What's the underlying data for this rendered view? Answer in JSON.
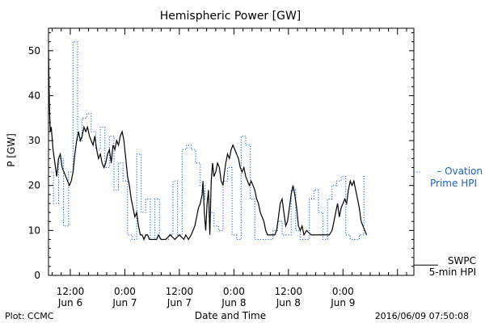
{
  "chart_data": {
    "type": "line",
    "title": "Hemispheric Power [GW]",
    "ylabel": "P [GW]",
    "xlabel": "Date and Time",
    "ylim": [
      0,
      55
    ],
    "yticks": [
      0,
      10,
      20,
      30,
      40,
      50
    ],
    "x_unit": "hours since 2016-06-06 00:00 UT",
    "xlim": [
      7.2,
      87.6
    ],
    "xticks": [
      {
        "x": 12,
        "time": "12:00",
        "date": "Jun 6"
      },
      {
        "x": 24,
        "time": "0:00",
        "date": "Jun 7"
      },
      {
        "x": 36,
        "time": "12:00",
        "date": "Jun 7"
      },
      {
        "x": 48,
        "time": "0:00",
        "date": "Jun 8"
      },
      {
        "x": 60,
        "time": "12:00",
        "date": "Jun 8"
      },
      {
        "x": 72,
        "time": "0:00",
        "date": "Jun 9"
      }
    ],
    "grid": false,
    "series": [
      {
        "name": "SWPC 5-min HPI",
        "legend_line1": "SWPC",
        "legend_line2": "5-min HPI",
        "color": "#000000",
        "style": "solid",
        "points": [
          [
            7.2,
            50
          ],
          [
            7.4,
            38
          ],
          [
            7.6,
            32
          ],
          [
            7.8,
            33
          ],
          [
            8.2,
            28
          ],
          [
            8.6,
            25
          ],
          [
            9,
            22
          ],
          [
            9.4,
            26
          ],
          [
            9.8,
            27
          ],
          [
            10.2,
            24
          ],
          [
            10.6,
            23
          ],
          [
            11,
            22
          ],
          [
            11.4,
            21
          ],
          [
            11.8,
            20
          ],
          [
            12.2,
            21
          ],
          [
            12.6,
            23
          ],
          [
            13,
            27
          ],
          [
            13.4,
            30
          ],
          [
            13.8,
            32
          ],
          [
            14.2,
            30
          ],
          [
            14.6,
            31
          ],
          [
            15,
            33
          ],
          [
            15.4,
            32
          ],
          [
            15.8,
            33
          ],
          [
            16.2,
            31
          ],
          [
            16.6,
            30
          ],
          [
            17,
            29
          ],
          [
            17.4,
            31
          ],
          [
            17.8,
            28
          ],
          [
            18.2,
            26
          ],
          [
            18.6,
            27
          ],
          [
            19,
            25
          ],
          [
            19.4,
            24
          ],
          [
            19.8,
            25
          ],
          [
            20.2,
            27
          ],
          [
            20.6,
            28
          ],
          [
            21,
            25
          ],
          [
            21.4,
            29
          ],
          [
            21.8,
            28
          ],
          [
            22.2,
            30
          ],
          [
            22.6,
            29
          ],
          [
            23,
            31
          ],
          [
            23.4,
            32
          ],
          [
            23.8,
            30
          ],
          [
            24.2,
            26
          ],
          [
            24.6,
            22
          ],
          [
            25,
            20
          ],
          [
            25.4,
            17
          ],
          [
            25.8,
            15
          ],
          [
            26.2,
            13
          ],
          [
            26.6,
            14
          ],
          [
            27,
            11
          ],
          [
            27.4,
            9
          ],
          [
            27.8,
            9
          ],
          [
            28.2,
            8
          ],
          [
            28.6,
            9
          ],
          [
            29,
            9
          ],
          [
            29.4,
            8
          ],
          [
            30,
            8
          ],
          [
            31,
            8
          ],
          [
            31.4,
            9
          ],
          [
            32,
            8
          ],
          [
            33,
            8
          ],
          [
            34,
            9
          ],
          [
            35,
            8
          ],
          [
            36,
            9
          ],
          [
            37,
            8
          ],
          [
            37.4,
            9
          ],
          [
            38,
            8
          ],
          [
            38.6,
            9
          ],
          [
            39,
            10
          ],
          [
            39.4,
            11
          ],
          [
            39.8,
            13
          ],
          [
            40.2,
            15
          ],
          [
            40.6,
            16
          ],
          [
            41,
            18
          ],
          [
            41.2,
            21
          ],
          [
            41.5,
            14
          ],
          [
            41.8,
            10
          ],
          [
            42.1,
            16
          ],
          [
            42.4,
            19
          ],
          [
            42.7,
            9
          ],
          [
            43,
            21
          ],
          [
            43.3,
            25
          ],
          [
            43.6,
            22
          ],
          [
            44,
            23
          ],
          [
            44.4,
            25
          ],
          [
            44.8,
            24
          ],
          [
            45.2,
            21
          ],
          [
            45.6,
            20
          ],
          [
            45.8,
            22
          ],
          [
            46.2,
            25
          ],
          [
            46.6,
            27
          ],
          [
            47,
            26
          ],
          [
            47.4,
            28
          ],
          [
            47.8,
            29
          ],
          [
            48.2,
            28
          ],
          [
            48.6,
            27
          ],
          [
            49,
            26
          ],
          [
            49.4,
            24
          ],
          [
            49.8,
            23
          ],
          [
            50.2,
            24
          ],
          [
            50.6,
            22
          ],
          [
            51,
            21
          ],
          [
            51.4,
            20
          ],
          [
            51.8,
            21
          ],
          [
            52.2,
            20
          ],
          [
            52.6,
            19
          ],
          [
            53,
            17
          ],
          [
            53.4,
            16
          ],
          [
            53.8,
            14
          ],
          [
            54.2,
            13
          ],
          [
            54.6,
            12
          ],
          [
            55,
            10
          ],
          [
            55.4,
            9
          ],
          [
            56,
            9
          ],
          [
            57,
            9
          ],
          [
            57.4,
            10
          ],
          [
            57.8,
            13
          ],
          [
            58.2,
            16
          ],
          [
            58.6,
            17
          ],
          [
            59,
            14
          ],
          [
            59.4,
            11
          ],
          [
            59.8,
            12
          ],
          [
            60.2,
            15
          ],
          [
            60.6,
            18
          ],
          [
            61,
            20
          ],
          [
            61.4,
            18
          ],
          [
            61.8,
            15
          ],
          [
            62.2,
            11
          ],
          [
            62.6,
            10
          ],
          [
            63,
            11
          ],
          [
            63.4,
            9
          ],
          [
            64,
            10
          ],
          [
            65,
            9
          ],
          [
            66,
            9
          ],
          [
            67,
            9
          ],
          [
            68,
            9
          ],
          [
            69,
            9
          ],
          [
            69.6,
            10
          ],
          [
            70,
            12
          ],
          [
            70.4,
            14
          ],
          [
            70.8,
            16
          ],
          [
            71.2,
            13
          ],
          [
            71.6,
            15
          ],
          [
            72,
            16
          ],
          [
            72.4,
            17
          ],
          [
            72.8,
            16
          ],
          [
            73.2,
            19
          ],
          [
            73.6,
            21
          ],
          [
            74,
            20
          ],
          [
            74.4,
            21
          ],
          [
            74.8,
            19
          ],
          [
            75.2,
            17
          ],
          [
            75.6,
            15
          ],
          [
            76,
            12
          ],
          [
            76.4,
            11
          ],
          [
            76.8,
            10
          ],
          [
            77.2,
            9
          ]
        ]
      },
      {
        "name": "Ovation Prime HPI",
        "legend_line1": "– Ovation",
        "legend_line2": "Prime HPI",
        "color": "#2060c8",
        "style": "dotted",
        "points": [
          [
            7.2,
            23
          ],
          [
            8.3,
            23
          ],
          [
            8.3,
            16
          ],
          [
            9.4,
            16
          ],
          [
            9.4,
            26
          ],
          [
            10.5,
            26
          ],
          [
            10.5,
            11
          ],
          [
            11.6,
            11
          ],
          [
            11.6,
            23
          ],
          [
            12.6,
            23
          ],
          [
            12.6,
            52
          ],
          [
            13.6,
            52
          ],
          [
            13.6,
            30
          ],
          [
            14.6,
            30
          ],
          [
            14.6,
            35
          ],
          [
            15.6,
            35
          ],
          [
            15.6,
            36
          ],
          [
            16.6,
            36
          ],
          [
            16.6,
            32
          ],
          [
            17.6,
            32
          ],
          [
            17.6,
            28
          ],
          [
            18.6,
            28
          ],
          [
            18.6,
            33
          ],
          [
            19.6,
            33
          ],
          [
            19.6,
            24
          ],
          [
            20.6,
            24
          ],
          [
            20.6,
            31
          ],
          [
            21.6,
            31
          ],
          [
            21.6,
            19
          ],
          [
            22.6,
            19
          ],
          [
            22.6,
            25
          ],
          [
            23.6,
            25
          ],
          [
            23.6,
            21
          ],
          [
            24.6,
            21
          ],
          [
            24.6,
            9
          ],
          [
            25.6,
            9
          ],
          [
            25.6,
            8
          ],
          [
            26.6,
            8
          ],
          [
            26.6,
            27
          ],
          [
            27.6,
            27
          ],
          [
            27.6,
            14
          ],
          [
            28.6,
            14
          ],
          [
            28.6,
            17
          ],
          [
            29.6,
            17
          ],
          [
            29.6,
            8
          ],
          [
            30.6,
            8
          ],
          [
            30.6,
            17
          ],
          [
            31.6,
            17
          ],
          [
            31.6,
            8
          ],
          [
            33.6,
            8
          ],
          [
            33.6,
            9
          ],
          [
            34.6,
            9
          ],
          [
            34.6,
            21
          ],
          [
            35.6,
            21
          ],
          [
            35.6,
            9
          ],
          [
            36.6,
            9
          ],
          [
            36.6,
            28
          ],
          [
            37.6,
            28
          ],
          [
            37.6,
            29
          ],
          [
            38.6,
            29
          ],
          [
            38.6,
            28
          ],
          [
            39.6,
            28
          ],
          [
            39.6,
            25
          ],
          [
            40.6,
            25
          ],
          [
            40.6,
            20
          ],
          [
            41.6,
            20
          ],
          [
            41.6,
            17
          ],
          [
            42.6,
            17
          ],
          [
            42.6,
            14
          ],
          [
            43.6,
            14
          ],
          [
            43.6,
            11
          ],
          [
            44.6,
            11
          ],
          [
            44.6,
            10
          ],
          [
            45.6,
            10
          ],
          [
            45.6,
            21
          ],
          [
            46.6,
            21
          ],
          [
            46.6,
            24
          ],
          [
            47.6,
            24
          ],
          [
            47.6,
            9
          ],
          [
            48.6,
            9
          ],
          [
            48.6,
            8
          ],
          [
            49.6,
            8
          ],
          [
            49.6,
            31
          ],
          [
            50.6,
            31
          ],
          [
            50.6,
            29
          ],
          [
            51.6,
            29
          ],
          [
            51.6,
            17
          ],
          [
            52.6,
            17
          ],
          [
            52.6,
            8
          ],
          [
            54.6,
            8
          ],
          [
            54.6,
            8
          ],
          [
            56.6,
            8
          ],
          [
            56.6,
            10
          ],
          [
            57.6,
            10
          ],
          [
            57.6,
            12
          ],
          [
            58.6,
            12
          ],
          [
            58.6,
            9
          ],
          [
            60.6,
            9
          ],
          [
            60.6,
            19
          ],
          [
            61.6,
            19
          ],
          [
            61.6,
            10
          ],
          [
            62.6,
            10
          ],
          [
            62.6,
            8
          ],
          [
            64.6,
            8
          ],
          [
            64.6,
            17
          ],
          [
            65.6,
            17
          ],
          [
            65.6,
            19
          ],
          [
            66.6,
            19
          ],
          [
            66.6,
            14
          ],
          [
            67.6,
            14
          ],
          [
            67.6,
            8
          ],
          [
            68.6,
            8
          ],
          [
            68.6,
            17
          ],
          [
            69.6,
            17
          ],
          [
            69.6,
            20
          ],
          [
            70.6,
            20
          ],
          [
            70.6,
            21
          ],
          [
            71.6,
            21
          ],
          [
            71.6,
            22
          ],
          [
            72.6,
            22
          ],
          [
            72.6,
            9
          ],
          [
            73.6,
            9
          ],
          [
            73.6,
            8
          ],
          [
            75.6,
            8
          ],
          [
            75.6,
            9
          ],
          [
            76.6,
            9
          ],
          [
            76.6,
            22
          ],
          [
            77.2,
            22
          ]
        ]
      }
    ]
  },
  "footer": {
    "plot_credit": "Plot: CCMC",
    "timestamp": "2016/06/09 07:50:08"
  }
}
